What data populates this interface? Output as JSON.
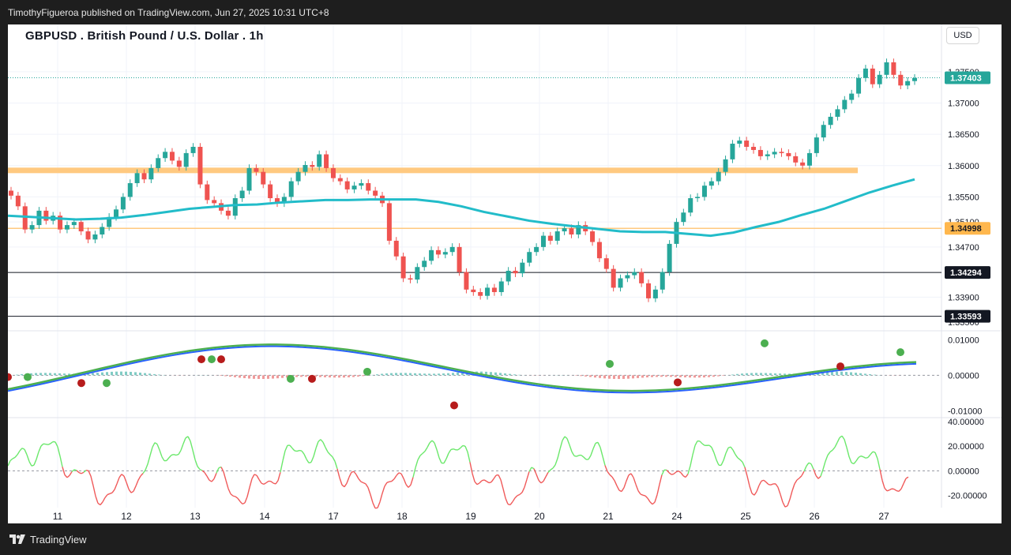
{
  "publish_line": "TimothyFigueroa published on TradingView.com, Jun 27, 2025 10:31 UTC+8",
  "header": {
    "title": "GBPUSD . British Pound / U.S. Dollar . 1h",
    "currency": "USD"
  },
  "footer": {
    "brand": "TradingView"
  },
  "colors": {
    "up": "#26a69a",
    "down": "#ef5350",
    "ma": "#22bcc9",
    "support": "#ffc980",
    "macd_fast": "#2962ff",
    "macd_up": "#4caf50",
    "macd_down": "#b71c1c",
    "osc_up": "#6be86b",
    "osc_down": "#f05a5a"
  },
  "chart_data": [
    {
      "type": "candlestick",
      "title": "GBPUSD . British Pound / U.S. Dollar . 1h",
      "x_ticks": [
        "11",
        "12",
        "13",
        "14",
        "17",
        "18",
        "19",
        "20",
        "21",
        "24",
        "25",
        "26",
        "27"
      ],
      "y_ticks": [
        "1.37500",
        "1.37000",
        "1.36500",
        "1.36000",
        "1.35500",
        "1.35100",
        "1.34700",
        "1.33900",
        "1.33500"
      ],
      "ylim": [
        1.3345,
        1.3775
      ],
      "last_price": "1.37403",
      "price_labels": [
        "1.37403",
        "1.34998",
        "1.34294",
        "1.33593"
      ],
      "horizontal_levels": [
        {
          "value": 1.3593,
          "style": "zone"
        },
        {
          "value": 1.34998,
          "style": "line"
        },
        {
          "value": 1.34294,
          "style": "line"
        },
        {
          "value": 1.33593,
          "style": "line"
        }
      ],
      "closes_approx": [
        1.3552,
        1.3535,
        1.3498,
        1.3505,
        1.3528,
        1.3512,
        1.352,
        1.3498,
        1.3505,
        1.351,
        1.3495,
        1.3482,
        1.349,
        1.3502,
        1.3518,
        1.353,
        1.355,
        1.3572,
        1.3588,
        1.3578,
        1.3596,
        1.3612,
        1.3622,
        1.3608,
        1.3598,
        1.362,
        1.363,
        1.357,
        1.3545,
        1.354,
        1.3528,
        1.352,
        1.3548,
        1.356,
        1.3596,
        1.359,
        1.357,
        1.3548,
        1.354,
        1.355,
        1.3575,
        1.359,
        1.3601,
        1.3598,
        1.3618,
        1.3596,
        1.358,
        1.3575,
        1.3562,
        1.3568,
        1.3572,
        1.356,
        1.3552,
        1.354,
        1.348,
        1.3455,
        1.342,
        1.3418,
        1.3438,
        1.3448,
        1.3465,
        1.3458,
        1.3462,
        1.347,
        1.343,
        1.3402,
        1.3398,
        1.3392,
        1.3405,
        1.3398,
        1.3415,
        1.3432,
        1.3428,
        1.3445,
        1.3462,
        1.347,
        1.3488,
        1.348,
        1.3495,
        1.35,
        1.349,
        1.3505,
        1.3495,
        1.3478,
        1.3452,
        1.3435,
        1.3405,
        1.342,
        1.3425,
        1.343,
        1.3412,
        1.3388,
        1.3402,
        1.343,
        1.3475,
        1.351,
        1.3525,
        1.3548,
        1.355,
        1.3568,
        1.3575,
        1.359,
        1.361,
        1.3635,
        1.364,
        1.363,
        1.3625,
        1.3615,
        1.3618,
        1.3622,
        1.362,
        1.3615,
        1.3605,
        1.36,
        1.362,
        1.3645,
        1.3665,
        1.3678,
        1.369,
        1.3705,
        1.3715,
        1.374,
        1.3755,
        1.373,
        1.3745,
        1.3765,
        1.3745,
        1.3728,
        1.3735,
        1.374
      ],
      "ma_approx": [
        1.352,
        1.3518,
        1.3516,
        1.3514,
        1.3515,
        1.3517,
        1.3521,
        1.3526,
        1.3531,
        1.3534,
        1.3537,
        1.3538,
        1.3541,
        1.3543,
        1.3545,
        1.3545,
        1.3546,
        1.3546,
        1.3546,
        1.3542,
        1.3535,
        1.3526,
        1.3519,
        1.3512,
        1.3507,
        1.3503,
        1.3499,
        1.3495,
        1.3494,
        1.3494,
        1.3491,
        1.3488,
        1.3493,
        1.3502,
        1.351,
        1.3521,
        1.3531,
        1.3544,
        1.3557,
        1.3568,
        1.3578
      ]
    },
    {
      "type": "line",
      "title": "",
      "y_ticks": [
        "0.01000",
        "0.00000",
        "-0.01000"
      ],
      "ylim": [
        -0.0115,
        0.0112
      ]
    },
    {
      "type": "line",
      "title": "",
      "y_ticks": [
        "40.00000",
        "20.00000",
        "0.00000",
        "-20.00000"
      ],
      "ylim": [
        -30,
        42
      ]
    }
  ]
}
